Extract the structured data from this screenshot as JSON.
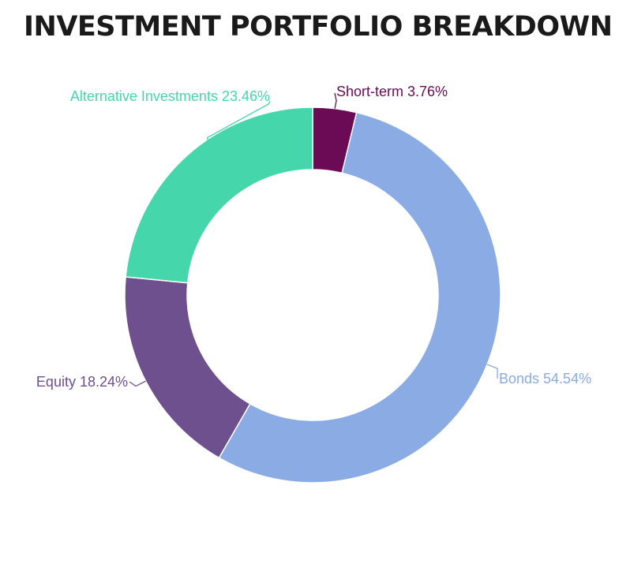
{
  "chart_data": {
    "type": "pie",
    "title": "INVESTMENT PORTFOLIO BREAKDOWN",
    "slices": [
      {
        "label": "Short-term 3.76%",
        "name": "Short-term",
        "value": 3.76,
        "color": "#6b0a55"
      },
      {
        "label": "Bonds 54.54%",
        "name": "Bonds",
        "value": 54.54,
        "color": "#8aabe3"
      },
      {
        "label": "Equity 18.24%",
        "name": "Equity",
        "value": 18.24,
        "color": "#6e508f"
      },
      {
        "label": "Alternative Investments 23.46%",
        "name": "Alternative Investments",
        "value": 23.46,
        "color": "#46d6ab"
      }
    ]
  }
}
